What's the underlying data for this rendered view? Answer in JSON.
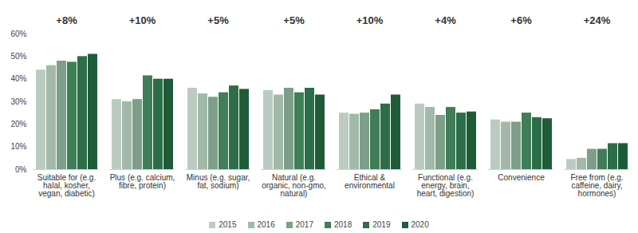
{
  "chart_data": {
    "type": "bar",
    "categories": [
      "Suitable for (e.g. halal, kosher, vegan, diabetic)",
      "Plus (e.g. calcium, fibre, protein)",
      "Minus (e.g. sugar, fat, sodium)",
      "Natural (e.g. organic, non-gmo, natural)",
      "Ethical & environmental",
      "Functional (e.g. energy, brain, heart, digestion)",
      "Convenience",
      "Free from (e.g. caffeine, dairy, hormones)"
    ],
    "annotations": [
      "+8%",
      "+10%",
      "+5%",
      "+5%",
      "+10%",
      "+4%",
      "+6%",
      "+24%"
    ],
    "series": [
      {
        "name": "2015",
        "color": "#bccbc1",
        "values": [
          44,
          31,
          36,
          35,
          25,
          29,
          22,
          4.5
        ]
      },
      {
        "name": "2016",
        "color": "#a2b9a9",
        "values": [
          46,
          30,
          33.5,
          33,
          24.5,
          27.5,
          21,
          5
        ]
      },
      {
        "name": "2017",
        "color": "#7d9f89",
        "values": [
          48,
          31,
          32,
          36,
          25,
          24,
          21,
          9
        ]
      },
      {
        "name": "2018",
        "color": "#3f7e57",
        "values": [
          47.5,
          41.5,
          34,
          34,
          26.5,
          27.5,
          25,
          9
        ]
      },
      {
        "name": "2019",
        "color": "#2b6e47",
        "values": [
          50,
          40,
          37,
          36,
          29,
          25,
          23,
          11.5
        ]
      },
      {
        "name": "2020",
        "color": "#1e5c38",
        "values": [
          51,
          40,
          35.5,
          33,
          33,
          25.5,
          22.5,
          11.5
        ]
      }
    ],
    "ylim": [
      0,
      60
    ],
    "yticks": [
      {
        "value": 0,
        "label": "0%"
      },
      {
        "value": 10,
        "label": "10%"
      },
      {
        "value": 20,
        "label": "20%"
      },
      {
        "value": 30,
        "label": "30%"
      },
      {
        "value": 40,
        "label": "40%"
      },
      {
        "value": 50,
        "label": "50%"
      },
      {
        "value": 60,
        "label": "60%"
      }
    ],
    "grid": false,
    "legend": "bottom"
  }
}
